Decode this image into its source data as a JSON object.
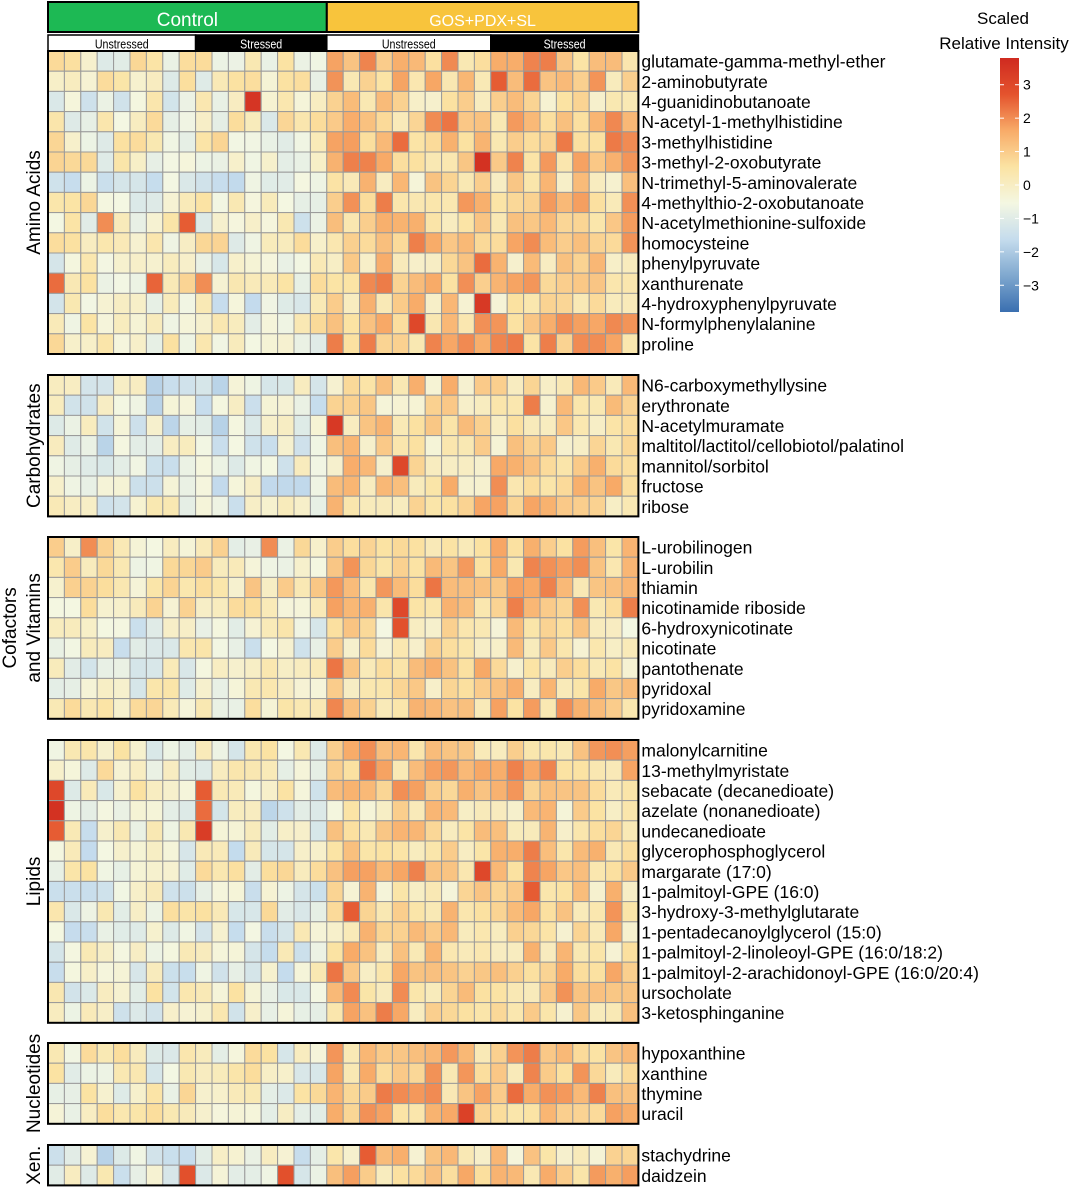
{
  "chart_data": {
    "type": "heatmap",
    "top_groups": [
      {
        "label": "Control",
        "color": "#1db954",
        "columns": 17
      },
      {
        "label": "GOS+PDX+SL",
        "color": "#f8c43c",
        "columns": 19
      }
    ],
    "sub_groups": [
      {
        "label": "Unstressed",
        "style": "white",
        "columns": 9
      },
      {
        "label": "Stressed",
        "style": "black",
        "columns": 8
      },
      {
        "label": "Unstressed",
        "style": "white",
        "columns": 10
      },
      {
        "label": "Stressed",
        "style": "black",
        "columns": 9
      }
    ],
    "colorbar": {
      "title_line1": "Scaled",
      "title_line2": "Relative Intensity",
      "min": -3.8,
      "max": 3.8,
      "ticks": [
        3,
        2,
        1,
        0,
        -1,
        -2,
        -3
      ],
      "tick_labels": [
        "3",
        "2",
        "1",
        "0",
        "−1",
        "−2",
        "−3"
      ],
      "colors": [
        "#3a6fb0",
        "#7fa8cf",
        "#c5dced",
        "#f4f7e2",
        "#fbe3a3",
        "#f8ab68",
        "#e4532d",
        "#cf2a20"
      ]
    },
    "blocks": [
      {
        "label_lines": [
          "Amino Acids"
        ],
        "metabolites": [
          "glutamate-gamma-methyl-ether",
          "2-aminobutyrate",
          "4-guanidinobutanoate",
          "N-acetyl-1-methylhistidine",
          "3-methylhistidine",
          "3-methyl-2-oxobutyrate",
          "N-trimethyl-5-aminovalerate",
          "4-methylthio-2-oxobutanoate",
          "N-acetylmethionine-sulfoxide",
          "homocysteine",
          "phenylpyruvate",
          "xanthurenate",
          "4-hydroxyphenylpyruvate",
          "N-formylphenylalanine",
          "proline"
        ]
      },
      {
        "label_lines": [
          "Carbohydrates"
        ],
        "metabolites": [
          "N6-carboxymethyllysine",
          "erythronate",
          "N-acetylmuramate",
          "maltitol/lactitol/cellobiotol/palatinol",
          "mannitol/sorbitol",
          "fructose",
          "ribose"
        ]
      },
      {
        "label_lines": [
          "Cofactors",
          "and Vitamins"
        ],
        "metabolites": [
          "L-urobilinogen",
          "L-urobilin",
          "thiamin",
          "nicotinamide riboside",
          "6-hydroxynicotinate",
          "nicotinate",
          "pantothenate",
          "pyridoxal",
          "pyridoxamine"
        ]
      },
      {
        "label_lines": [
          "Lipids"
        ],
        "metabolites": [
          "malonylcarnitine",
          "13-methylmyristate",
          "sebacate (decanedioate)",
          "azelate (nonanedioate)",
          "undecanedioate",
          "glycerophosphoglycerol",
          "margarate (17:0)",
          "1-palmitoyl-GPE (16:0)",
          "3-hydroxy-3-methylglutarate",
          "1-pentadecanoylglycerol (15:0)",
          "1-palmitoyl-2-linoleoyl-GPE (16:0/18:2)",
          "1-palmitoyl-2-arachidonoyl-GPE (16:0/20:4)",
          "ursocholate",
          "3-ketosphinganine"
        ]
      },
      {
        "label_lines": [
          "Nucleotides"
        ],
        "metabolites": [
          "hypoxanthine",
          "xanthine",
          "thymine",
          "uracil"
        ]
      },
      {
        "label_lines": [
          "Xen."
        ],
        "metabolites": [
          "stachydrine",
          "daidzein"
        ]
      }
    ],
    "baselines": [
      [
        -0.4,
        0.9
      ],
      [
        -0.6,
        0.9
      ],
      [
        -0.2,
        0.8
      ],
      [
        -0.5,
        0.9
      ],
      [
        -0.4,
        1.0
      ],
      [
        -0.5,
        0.9
      ]
    ],
    "hotspots": [
      {
        "metabolite": "4-guanidinobutanoate",
        "col": 12,
        "value": 3.5
      },
      {
        "metabolite": "N-acetylmethionine-sulfoxide",
        "col": 8,
        "value": 2.6
      },
      {
        "metabolite": "N-acetylmethionine-sulfoxide",
        "col": 3,
        "value": 2.0
      },
      {
        "metabolite": "xanthurenate",
        "col": 0,
        "value": 2.4
      },
      {
        "metabolite": "xanthurenate",
        "col": 6,
        "value": 2.5
      },
      {
        "metabolite": "xanthurenate",
        "col": 9,
        "value": 2.0
      },
      {
        "metabolite": "2-aminobutyrate",
        "col": 27,
        "value": 2.6
      },
      {
        "metabolite": "2-aminobutyrate",
        "col": 29,
        "value": 2.4
      },
      {
        "metabolite": "N-acetyl-1-methylhistidine",
        "col": 24,
        "value": 2.3
      },
      {
        "metabolite": "3-methylhistidine",
        "col": 21,
        "value": 2.4
      },
      {
        "metabolite": "3-methyl-2-oxobutyrate",
        "col": 26,
        "value": 3.6
      },
      {
        "metabolite": "4-methylthio-2-oxobutanoate",
        "col": 20,
        "value": 2.2
      },
      {
        "metabolite": "phenylpyruvate",
        "col": 26,
        "value": 2.4
      },
      {
        "metabolite": "4-hydroxyphenylpyruvate",
        "col": 26,
        "value": 3.4
      },
      {
        "metabolite": "N-formylphenylalanine",
        "col": 22,
        "value": 3.0
      },
      {
        "metabolite": "N-formylphenylalanine",
        "col": 31,
        "value": 2.0
      },
      {
        "metabolite": "proline",
        "col": 17,
        "value": 2.2
      },
      {
        "metabolite": "N-acetylmuramate",
        "col": 17,
        "value": 3.4
      },
      {
        "metabolite": "mannitol/sorbitol",
        "col": 21,
        "value": 3.0
      },
      {
        "metabolite": "erythronate",
        "col": 29,
        "value": 2.2
      },
      {
        "metabolite": "fructose",
        "col": 27,
        "value": 2.0
      },
      {
        "metabolite": "L-urobilinogen",
        "col": 2,
        "value": 2.0
      },
      {
        "metabolite": "L-urobilinogen",
        "col": 13,
        "value": 2.0
      },
      {
        "metabolite": "nicotinamide riboside",
        "col": 21,
        "value": 3.0
      },
      {
        "metabolite": "6-hydroxynicotinate",
        "col": 21,
        "value": 2.8
      },
      {
        "metabolite": "thiamin",
        "col": 23,
        "value": 2.3
      },
      {
        "metabolite": "pantothenate",
        "col": 17,
        "value": 2.3
      },
      {
        "metabolite": "sebacate (decanedioate)",
        "col": 0,
        "value": 3.0
      },
      {
        "metabolite": "sebacate (decanedioate)",
        "col": 9,
        "value": 2.6
      },
      {
        "metabolite": "azelate (nonanedioate)",
        "col": 0,
        "value": 3.6
      },
      {
        "metabolite": "azelate (nonanedioate)",
        "col": 9,
        "value": 2.4
      },
      {
        "metabolite": "undecanedioate",
        "col": 0,
        "value": 2.6
      },
      {
        "metabolite": "undecanedioate",
        "col": 9,
        "value": 3.3
      },
      {
        "metabolite": "13-methylmyristate",
        "col": 19,
        "value": 2.3
      },
      {
        "metabolite": "margarate (17:0)",
        "col": 26,
        "value": 3.0
      },
      {
        "metabolite": "glycerophosphoglycerol",
        "col": 29,
        "value": 2.2
      },
      {
        "metabolite": "1-palmitoyl-GPE (16:0)",
        "col": 29,
        "value": 2.6
      },
      {
        "metabolite": "3-hydroxy-3-methylglutarate",
        "col": 18,
        "value": 2.6
      },
      {
        "metabolite": "1-palmitoyl-2-arachidonoyl-GPE (16:0/20:4)",
        "col": 17,
        "value": 2.3
      },
      {
        "metabolite": "3-ketosphinganine",
        "col": 20,
        "value": 2.2
      },
      {
        "metabolite": "uracil",
        "col": 25,
        "value": 3.2
      },
      {
        "metabolite": "thymine",
        "col": 28,
        "value": 2.4
      },
      {
        "metabolite": "hypoxanthine",
        "col": 29,
        "value": 2.2
      },
      {
        "metabolite": "stachydrine",
        "col": 19,
        "value": 2.6
      },
      {
        "metabolite": "daidzein",
        "col": 8,
        "value": 2.8
      },
      {
        "metabolite": "daidzein",
        "col": 14,
        "value": 2.8
      }
    ]
  }
}
